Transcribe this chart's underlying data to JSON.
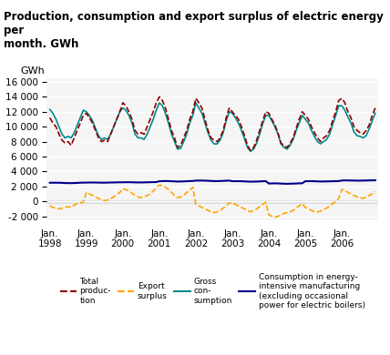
{
  "title": "Production, consumption and export surplus of electric energy per\nmonth. GWh",
  "ylabel": "GWh",
  "ylim": [
    -2500,
    16500
  ],
  "yticks": [
    -2000,
    0,
    2000,
    4000,
    6000,
    8000,
    10000,
    12000,
    14000,
    16000
  ],
  "background_color": "#ffffff",
  "plot_bg_color": "#f5f5f5",
  "grid_color": "#ffffff",
  "colors": {
    "production": "#8B0000",
    "export": "#FFA500",
    "gross": "#008B8B",
    "consumption": "#00008B"
  },
  "legend": [
    {
      "label": "Total\nproduc-\ntion",
      "color": "#8B0000",
      "ls": "--"
    },
    {
      "label": "Export\nsurplus",
      "color": "#FFA500",
      "ls": "--"
    },
    {
      "label": "Gross\ncon-\nsumption",
      "color": "#008B8B",
      "ls": "-"
    },
    {
      "label": "Consumption in energy-\nintensive manufacturing\n(excluding occasional\npower for electric boilers)",
      "color": "#00008B",
      "ls": "-"
    }
  ],
  "production": [
    11200,
    10500,
    10000,
    9000,
    8200,
    7800,
    8000,
    7500,
    8500,
    9500,
    10500,
    11500,
    11800,
    11200,
    10500,
    9500,
    8500,
    8000,
    8200,
    8000,
    9000,
    10000,
    11000,
    12000,
    13200,
    12800,
    12000,
    11000,
    9500,
    9000,
    9200,
    9000,
    10000,
    11000,
    12000,
    13200,
    14000,
    13500,
    12500,
    11000,
    9500,
    8500,
    7200,
    7500,
    8500,
    9500,
    11000,
    12000,
    13800,
    13200,
    12500,
    11000,
    9500,
    8500,
    8200,
    8000,
    8500,
    9500,
    11200,
    12500,
    12000,
    11500,
    11000,
    10000,
    8800,
    7500,
    6800,
    7200,
    8200,
    9500,
    10800,
    12000,
    11800,
    11000,
    10200,
    9200,
    7800,
    7500,
    7200,
    7800,
    8500,
    9800,
    11000,
    12000,
    11500,
    11000,
    10000,
    9200,
    8500,
    8000,
    8500,
    8800,
    9500,
    10800,
    12000,
    13500,
    13800,
    13200,
    12000,
    11200,
    10000,
    9500,
    9200,
    9000,
    9500,
    10200,
    11500,
    12500
  ],
  "export": [
    -600,
    -800,
    -900,
    -1000,
    -900,
    -800,
    -700,
    -800,
    -500,
    -300,
    -200,
    -100,
    1200,
    1000,
    800,
    600,
    400,
    200,
    100,
    200,
    400,
    600,
    900,
    1200,
    1700,
    1600,
    1400,
    1100,
    800,
    600,
    500,
    600,
    800,
    1000,
    1400,
    1800,
    2200,
    2100,
    1900,
    1600,
    1200,
    800,
    500,
    600,
    800,
    1200,
    1500,
    1900,
    -400,
    -600,
    -800,
    -1000,
    -1200,
    -1400,
    -1500,
    -1400,
    -1200,
    -900,
    -600,
    -200,
    -200,
    -400,
    -600,
    -800,
    -1000,
    -1200,
    -1400,
    -1200,
    -1000,
    -700,
    -400,
    -100,
    -1800,
    -2000,
    -2100,
    -2000,
    -1800,
    -1600,
    -1500,
    -1400,
    -1200,
    -900,
    -600,
    -300,
    -800,
    -1000,
    -1200,
    -1400,
    -1400,
    -1300,
    -1100,
    -900,
    -600,
    -300,
    0,
    400,
    1600,
    1500,
    1200,
    1000,
    800,
    600,
    500,
    400,
    600,
    800,
    1000,
    1300
  ],
  "gross": [
    12300,
    11800,
    11000,
    10000,
    9000,
    8500,
    8700,
    8500,
    9200,
    10200,
    11200,
    12200,
    12000,
    11500,
    10800,
    9800,
    8800,
    8300,
    8500,
    8300,
    9000,
    10000,
    11000,
    12000,
    12500,
    12200,
    11500,
    10500,
    9000,
    8500,
    8500,
    8300,
    9000,
    10000,
    11000,
    12200,
    13200,
    12800,
    11800,
    10500,
    9000,
    8000,
    7000,
    7100,
    8000,
    9000,
    10500,
    11500,
    13200,
    12500,
    11800,
    10500,
    9200,
    8200,
    7700,
    7700,
    8200,
    9200,
    10800,
    12000,
    11800,
    11200,
    10500,
    9500,
    8400,
    7200,
    6700,
    7000,
    7800,
    9000,
    10400,
    11500,
    11500,
    10800,
    10000,
    9000,
    7700,
    7200,
    7000,
    7500,
    8300,
    9500,
    10500,
    11500,
    11000,
    10500,
    9500,
    8700,
    8000,
    7700,
    8000,
    8300,
    9000,
    10300,
    11500,
    12800,
    12800,
    12200,
    11300,
    10500,
    9300,
    8800,
    8700,
    8500,
    8800,
    9700,
    10800,
    11800
  ],
  "consumption": [
    2500,
    2500,
    2500,
    2500,
    2480,
    2460,
    2450,
    2450,
    2460,
    2480,
    2500,
    2520,
    2520,
    2530,
    2530,
    2530,
    2520,
    2510,
    2510,
    2520,
    2530,
    2540,
    2550,
    2560,
    2560,
    2570,
    2570,
    2560,
    2550,
    2540,
    2540,
    2550,
    2560,
    2570,
    2580,
    2590,
    2700,
    2720,
    2730,
    2720,
    2700,
    2680,
    2660,
    2670,
    2680,
    2700,
    2720,
    2740,
    2780,
    2790,
    2790,
    2780,
    2760,
    2740,
    2720,
    2720,
    2730,
    2750,
    2770,
    2790,
    2700,
    2710,
    2710,
    2700,
    2680,
    2660,
    2640,
    2650,
    2660,
    2680,
    2700,
    2710,
    2400,
    2410,
    2420,
    2410,
    2390,
    2370,
    2360,
    2370,
    2380,
    2400,
    2420,
    2430,
    2700,
    2710,
    2710,
    2700,
    2680,
    2670,
    2670,
    2680,
    2690,
    2700,
    2710,
    2720,
    2800,
    2810,
    2810,
    2800,
    2790,
    2780,
    2780,
    2790,
    2800,
    2810,
    2820,
    2830
  ]
}
